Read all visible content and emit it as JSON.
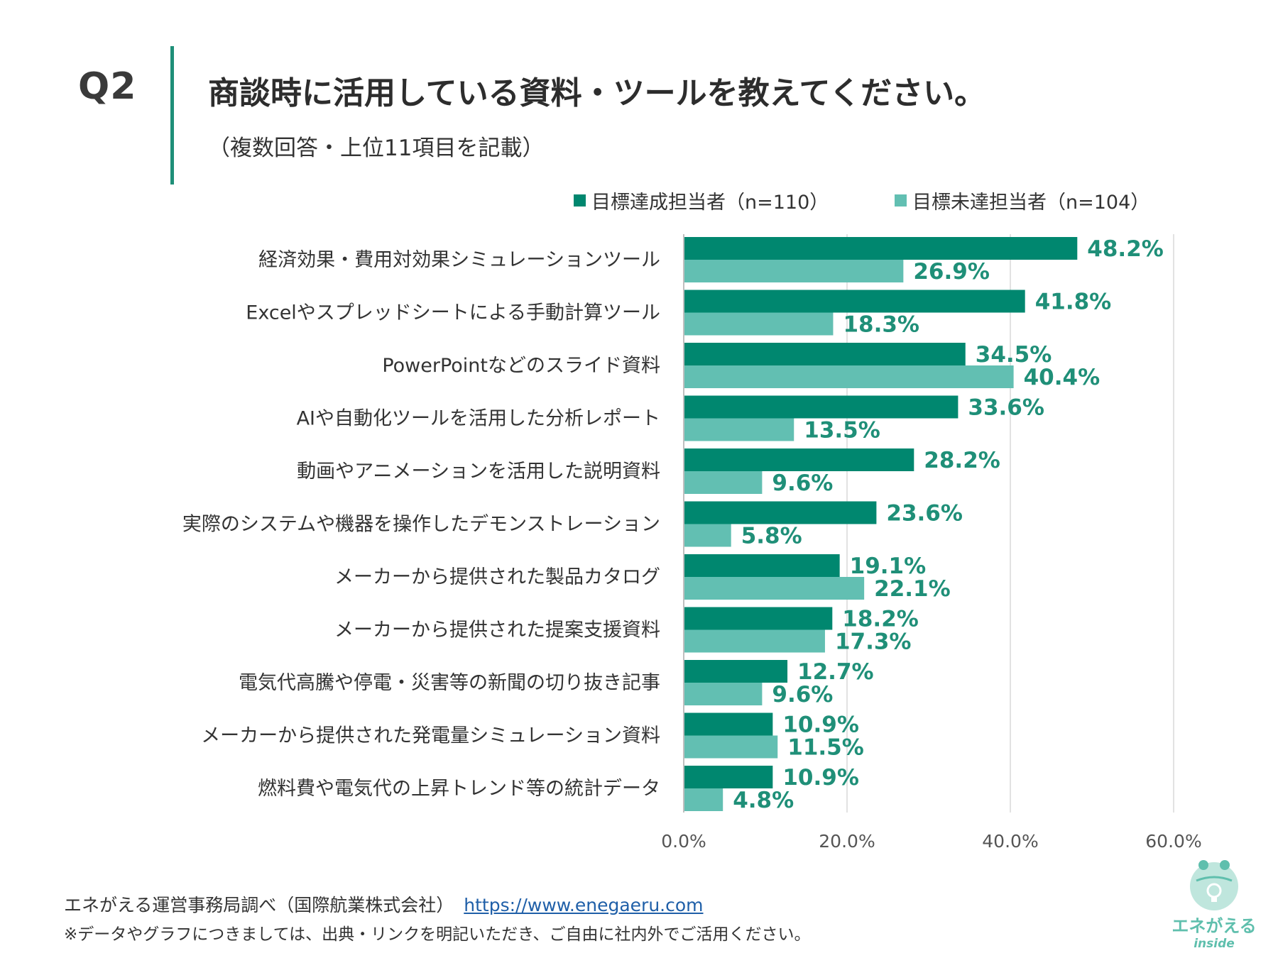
{
  "header": {
    "q_label": "Q2",
    "title": "商談時に活用している資料・ツールを教えてください。",
    "subtitle": "（複数回答・上位11項目を記載）"
  },
  "colors": {
    "accent": "#1f8f78",
    "series_a": "#00876f",
    "series_b": "#62bfb2",
    "label": "#1f8f78",
    "grid": "#d9d9d9"
  },
  "chart_data": {
    "type": "bar",
    "orientation": "horizontal",
    "title": "商談時に活用している資料・ツールを教えてください。",
    "categories": [
      "経済効果・費用対効果シミュレーションツール",
      "Excelやスプレッドシートによる手動計算ツール",
      "PowerPointなどのスライド資料",
      "AIや自動化ツールを活用した分析レポート",
      "動画やアニメーションを活用した説明資料",
      "実際のシステムや機器を操作したデモンストレーション",
      "メーカーから提供された製品カタログ",
      "メーカーから提供された提案支援資料",
      "電気代高騰や停電・災害等の新聞の切り抜き記事",
      "メーカーから提供された発電量シミュレーション資料",
      "燃料費や電気代の上昇トレンド等の統計データ"
    ],
    "series": [
      {
        "name": "目標達成担当者（n=110）",
        "values": [
          48.2,
          41.8,
          34.5,
          33.6,
          28.2,
          23.6,
          19.1,
          18.2,
          12.7,
          10.9,
          10.9
        ],
        "labels": [
          "48.2%",
          "41.8%",
          "34.5%",
          "33.6%",
          "28.2%",
          "23.6%",
          "19.1%",
          "18.2%",
          "12.7%",
          "10.9%",
          "10.9%"
        ]
      },
      {
        "name": "目標未達担当者（n=104）",
        "values": [
          26.9,
          18.3,
          40.4,
          13.5,
          9.6,
          5.8,
          22.1,
          17.3,
          9.6,
          11.5,
          4.8
        ],
        "labels": [
          "26.9%",
          "18.3%",
          "40.4%",
          "13.5%",
          "9.6%",
          "5.8%",
          "22.1%",
          "17.3%",
          "9.6%",
          "11.5%",
          "4.8%"
        ]
      }
    ],
    "xlim": [
      0,
      60
    ],
    "xticks": [
      0,
      20,
      40,
      60
    ],
    "xtick_labels": [
      "0.0%",
      "20.0%",
      "40.0%",
      "60.0%"
    ],
    "grid": true,
    "legend_position": "top-right"
  },
  "footer": {
    "source": "エネがえる運営事務局調べ（国際航業株式会社）",
    "url": "https://www.enegaeru.com",
    "note": "※データやグラフにつきましては、出典・リンクを明記いただき、ご自由に社内外でご活用ください。"
  },
  "logo": {
    "name": "エネがえる",
    "sub": "inside"
  }
}
